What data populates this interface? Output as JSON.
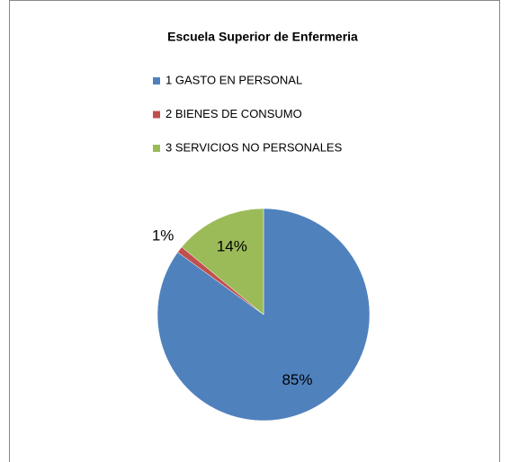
{
  "chart_data": {
    "type": "pie",
    "title": "Escuela Superior de Enfermeria",
    "categories": [
      "1 GASTO EN PERSONAL",
      "2 BIENES DE CONSUMO",
      "3 SERVICIOS NO PERSONALES"
    ],
    "values": [
      85,
      1,
      14
    ],
    "value_labels": [
      "85%",
      "1%",
      "14%"
    ],
    "colors": [
      "#4f81bd",
      "#c0504d",
      "#9bbb59"
    ]
  }
}
